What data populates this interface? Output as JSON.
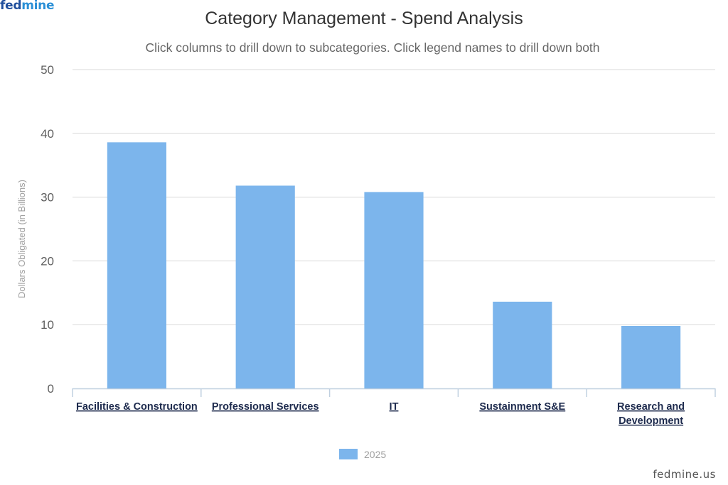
{
  "logo": {
    "part1": "fed",
    "part2": "mine"
  },
  "watermark": "fedmine.us",
  "chart_data": {
    "type": "bar",
    "title": "Category Management - Spend Analysis",
    "subtitle": "Click columns to drill down to subcategories. Click legend names to drill down both",
    "ylabel": "Dollars Obligated (in Billions)",
    "xlabel": "",
    "ylim": [
      0,
      50
    ],
    "yticks": [
      0,
      10,
      20,
      30,
      40,
      50
    ],
    "grid": true,
    "legend_position": "bottom-center",
    "categories": [
      [
        "Facilities & Construction"
      ],
      [
        "Professional Services"
      ],
      [
        "IT"
      ],
      [
        "Sustainment S&E"
      ],
      [
        "Research and",
        "Development"
      ]
    ],
    "series": [
      {
        "name": "2025",
        "color": "#7cb5ec",
        "values": [
          38.6,
          31.8,
          30.8,
          13.6,
          9.8
        ]
      }
    ]
  }
}
